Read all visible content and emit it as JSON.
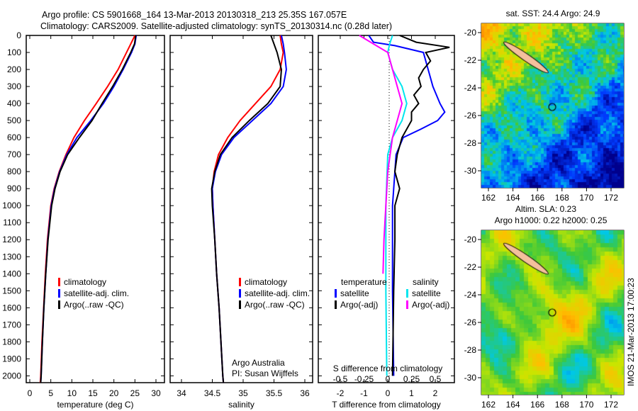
{
  "title_line1": "Argo profile: CS 5901668_164 13-Mar-2013 20130318_213 25.35S 167.057E",
  "title_line2": "Climatology: CARS2009. Satellite-adjusted climatology: synTS_20130314.nc (0.28d later)",
  "footer": "IMOS 21-Mar-2013 17:00:23",
  "chart_data": [
    {
      "type": "line",
      "name": "temperature",
      "xlabel": "temperature (deg C)",
      "xlim": [
        -1,
        31
      ],
      "ylim": [
        0,
        2040
      ],
      "yticks": [
        0,
        100,
        200,
        300,
        400,
        500,
        600,
        700,
        800,
        900,
        1000,
        1100,
        1200,
        1300,
        1400,
        1500,
        1600,
        1700,
        1800,
        1900,
        2000
      ],
      "xticks": [
        0,
        5,
        10,
        15,
        20,
        25,
        30
      ],
      "depth": [
        0,
        50,
        100,
        200,
        300,
        400,
        500,
        600,
        700,
        800,
        900,
        1000,
        1200,
        1400,
        1600,
        1800,
        2000,
        2040
      ],
      "legend": [
        "climatology",
        "satellite-adj. clim.",
        "Argo(..raw -QC)"
      ],
      "series": [
        {
          "name": "climatology",
          "color": "#ff0000",
          "values": [
            25,
            24,
            23,
            21,
            18.5,
            15.8,
            13,
            10.5,
            8.6,
            7,
            5.8,
            5,
            4.2,
            3.7,
            3.3,
            2.9,
            2.6,
            2.5
          ]
        },
        {
          "name": "satellite-adj. clim.",
          "color": "#0000ff",
          "values": [
            25.3,
            25,
            24.2,
            22.2,
            20,
            17.5,
            14.5,
            11.2,
            8.8,
            7.1,
            5.9,
            5.1,
            4.3,
            3.8,
            3.35,
            3,
            2.7,
            2.6
          ]
        },
        {
          "name": "Argo(..raw -QC)",
          "color": "#000000",
          "values": [
            25.2,
            24.9,
            24,
            22,
            19.7,
            17.2,
            14.8,
            11.8,
            9,
            7.2,
            6,
            5.2,
            4.35,
            3.8,
            3.35,
            3,
            2.7,
            2.6
          ]
        }
      ]
    },
    {
      "type": "line",
      "name": "salinity",
      "xlabel": "salinity",
      "xlim": [
        33.8,
        36.1
      ],
      "ylim": [
        0,
        2040
      ],
      "xticks": [
        34,
        34.5,
        35,
        35.5,
        36
      ],
      "depth": [
        0,
        50,
        100,
        200,
        300,
        400,
        500,
        600,
        700,
        800,
        900,
        1000,
        1200,
        1400,
        1600,
        1800,
        2000,
        2040
      ],
      "legend": [
        "climatology",
        "satellite-adj. clim.",
        "Argo(..raw -QC)"
      ],
      "annotation": [
        "Argo Australia",
        "PI: Susan Wijffels"
      ],
      "series": [
        {
          "name": "climatology",
          "color": "#ff0000",
          "values": [
            35.6,
            35.62,
            35.65,
            35.6,
            35.45,
            35.2,
            34.95,
            34.75,
            34.6,
            34.53,
            34.5,
            34.51,
            34.54,
            34.57,
            34.61,
            34.64,
            34.67,
            34.68
          ]
        },
        {
          "name": "satellite-adj. clim.",
          "color": "#0000ff",
          "values": [
            35.62,
            35.65,
            35.67,
            35.7,
            35.65,
            35.45,
            35.15,
            34.85,
            34.65,
            34.55,
            34.5,
            34.51,
            34.54,
            34.57,
            34.61,
            34.64,
            34.67,
            34.68
          ]
        },
        {
          "name": "Argo(..raw -QC)",
          "color": "#000000",
          "values": [
            35.45,
            35.5,
            35.55,
            35.62,
            35.6,
            35.4,
            35.1,
            34.82,
            34.63,
            34.54,
            34.49,
            34.5,
            34.54,
            34.57,
            34.61,
            34.64,
            34.67,
            34.68
          ]
        }
      ]
    },
    {
      "type": "line",
      "name": "differences",
      "xlabel": "T difference from climatology",
      "x2label": "S difference from climatology",
      "xlim": [
        -3,
        3
      ],
      "x2lim": [
        -0.75,
        0.75
      ],
      "ylim": [
        0,
        2040
      ],
      "xticks": [
        -2,
        -1,
        0,
        1,
        2
      ],
      "x2ticks": [
        -0.5,
        -0.25,
        0,
        0.25,
        0.5
      ],
      "legend_headers": [
        "temperature",
        "salinity"
      ],
      "legend": [
        "satellite",
        "Argo(-adj)",
        "satellite",
        "Argo(-adj)"
      ],
      "series": [
        {
          "name": "T satellite",
          "color": "#0000ff",
          "units": "T",
          "depth": [
            0,
            40,
            60,
            100,
            200,
            300,
            400,
            450,
            500,
            550,
            600,
            700,
            800,
            1000,
            1500,
            2000
          ],
          "values": [
            -0.8,
            -0.6,
            0.3,
            1.5,
            1.7,
            1.9,
            2.2,
            2.4,
            2.1,
            1.4,
            0.65,
            0.35,
            0.3,
            0.2,
            0.2,
            0.25
          ]
        },
        {
          "name": "T Argo(-adj)",
          "color": "#000000",
          "units": "T",
          "depth": [
            0,
            40,
            70,
            100,
            150,
            200,
            250,
            300,
            350,
            400,
            450,
            500,
            600,
            700,
            800,
            900,
            1000,
            1200,
            1500,
            2000
          ],
          "values": [
            0.5,
            1.2,
            2.6,
            1.6,
            1.8,
            1.5,
            1.3,
            1.4,
            1.1,
            1.3,
            1.0,
            1.0,
            0.6,
            0.4,
            0.3,
            0.5,
            0.3,
            0.3,
            0.25,
            0.2
          ]
        },
        {
          "name": "S satellite",
          "color": "#00e5ee",
          "units": "S",
          "depth": [
            0,
            50,
            100,
            200,
            300,
            400,
            500,
            600,
            700,
            1000,
            1500,
            2000
          ],
          "values": [
            0.05,
            0.02,
            0,
            0.05,
            0.15,
            0.2,
            0.15,
            0.05,
            0,
            -0.02,
            -0.02,
            -0.01
          ]
        },
        {
          "name": "S Argo(-adj)",
          "color": "#ff00ff",
          "units": "S",
          "depth": [
            0,
            50,
            100,
            200,
            300,
            400,
            500,
            600,
            800,
            1000,
            1200,
            1400
          ],
          "values": [
            -0.3,
            -0.15,
            0,
            0.05,
            0.1,
            0.15,
            0.1,
            0.05,
            0,
            -0.02,
            -0.04,
            -0.05
          ]
        }
      ]
    },
    {
      "type": "heatmap",
      "name": "sst-map",
      "title": "sat. SST: 24.4  Argo: 24.9",
      "xticks": [
        162,
        164,
        166,
        168,
        170,
        172
      ],
      "yticks": [
        -20,
        -22,
        -24,
        -26,
        -28,
        -30
      ],
      "xlim": [
        161.3,
        172.8
      ],
      "ylim": [
        -31.5,
        -19.6
      ],
      "profile_location": [
        167.057,
        -25.35
      ]
    },
    {
      "type": "heatmap",
      "name": "sla-map",
      "title": "Altim. SLA: 0.23",
      "subtitle": "Argo h1000: 0.22 h2000: 0.25",
      "xticks": [
        162,
        164,
        166,
        168,
        170,
        172
      ],
      "yticks": [
        -20,
        -22,
        -24,
        -26,
        -28,
        -30
      ],
      "xlim": [
        161.3,
        172.8
      ],
      "ylim": [
        -31.5,
        -19.6
      ],
      "profile_location": [
        167.057,
        -25.35
      ]
    }
  ]
}
